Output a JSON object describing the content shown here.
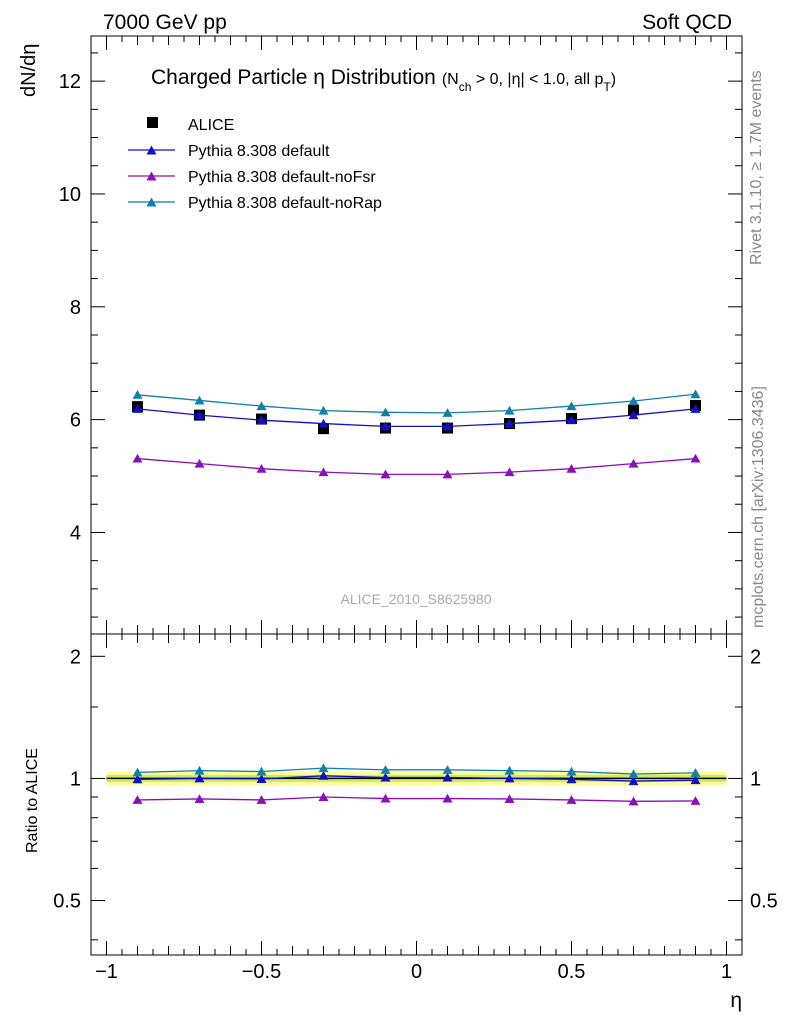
{
  "header": {
    "left": "7000 GeV pp",
    "right": "Soft QCD"
  },
  "side_labels": {
    "rivet": "Rivet 3.1.10, ≥ 1.7M events",
    "mcplots": "mcplots.cern.ch [arXiv:1306.3436]"
  },
  "watermark": "ALICE_2010_S8625980",
  "colors": {
    "alice": "#000000",
    "default": "#1010c8",
    "noFsr": "#8a10b8",
    "noRap": "#1080a8",
    "band_inner": "#ccee66",
    "band_outer": "#ffff99"
  },
  "chart_data": [
    {
      "type": "line",
      "title": "Charged Particle η Distribution",
      "title_sub": "(N",
      "title_sub_ch": "ch",
      "title_sub_rest": " > 0, |η| < 1.0, all p",
      "title_sub_T": "T",
      "title_sub_close": ")",
      "ylabel": "dN/dη",
      "xlabel": "η",
      "xlim": [
        -1.05,
        1.05
      ],
      "ylim": [
        2.2,
        12.8
      ],
      "yticks_major": [
        4,
        6,
        8,
        10,
        12
      ],
      "ytick_labels": [
        "4",
        "6",
        "8",
        "10",
        "12"
      ],
      "x": [
        -0.9,
        -0.7,
        -0.5,
        -0.3,
        -0.1,
        0.1,
        0.3,
        0.5,
        0.7,
        0.9
      ],
      "series": [
        {
          "name": "ALICE",
          "marker": "square",
          "values": [
            6.23,
            6.08,
            6.01,
            5.84,
            5.85,
            5.85,
            5.93,
            6.02,
            6.17,
            6.25
          ]
        },
        {
          "name": "Pythia 8.308 default",
          "marker": "triangle",
          "values": [
            6.19,
            6.08,
            5.99,
            5.93,
            5.88,
            5.88,
            5.93,
            5.99,
            6.08,
            6.19
          ]
        },
        {
          "name": "Pythia 8.308 default-noFsr",
          "marker": "triangle",
          "values": [
            5.31,
            5.22,
            5.13,
            5.07,
            5.03,
            5.03,
            5.07,
            5.13,
            5.22,
            5.31
          ]
        },
        {
          "name": "Pythia 8.308 default-noRap",
          "marker": "triangle",
          "values": [
            6.44,
            6.34,
            6.24,
            6.16,
            6.13,
            6.12,
            6.16,
            6.24,
            6.33,
            6.45
          ]
        }
      ]
    },
    {
      "type": "line",
      "ylabel": "Ratio to ALICE",
      "xlabel": "η",
      "xlim": [
        -1.05,
        1.05
      ],
      "ylim": [
        0.367,
        2.27
      ],
      "yticks_major": [
        0.5,
        1,
        2
      ],
      "ytick_labels": [
        "0.5",
        "1",
        "2"
      ],
      "xticks_major": [
        -1,
        -0.5,
        0,
        0.5,
        1
      ],
      "xtick_labels": [
        "−1",
        "−0.5",
        "0",
        "0.5",
        "1"
      ],
      "band": {
        "inner": 0.02,
        "outer": 0.04
      },
      "x": [
        -0.9,
        -0.7,
        -0.5,
        -0.3,
        -0.1,
        0.1,
        0.3,
        0.5,
        0.7,
        0.9
      ],
      "series": [
        {
          "name": "Pythia 8.308 default",
          "values": [
            0.995,
            1.0,
            0.997,
            1.015,
            1.005,
            1.005,
            1.0,
            0.995,
            0.985,
            0.99
          ]
        },
        {
          "name": "Pythia 8.308 default-noFsr",
          "values": [
            0.885,
            0.89,
            0.885,
            0.9,
            0.892,
            0.892,
            0.89,
            0.885,
            0.878,
            0.88
          ]
        },
        {
          "name": "Pythia 8.308 default-noRap",
          "values": [
            1.035,
            1.045,
            1.04,
            1.06,
            1.05,
            1.05,
            1.045,
            1.04,
            1.025,
            1.032
          ]
        }
      ]
    }
  ]
}
